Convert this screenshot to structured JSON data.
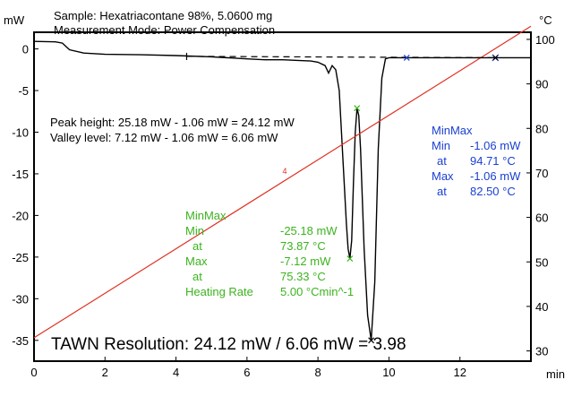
{
  "chart_data": {
    "type": "line",
    "title_lines": [
      "Sample: Hexatriacontane 98%, 5.0600 mg",
      "Measurement Mode: Power Compensation"
    ],
    "x_unit": "min",
    "y_left_unit": "mW",
    "y_right_unit": "°C",
    "xlim": [
      0,
      14
    ],
    "ylim_left": [
      -37.5,
      2
    ],
    "ylim_right": [
      27.7,
      101.6
    ],
    "x_ticks": [
      0,
      2,
      4,
      6,
      8,
      10,
      12
    ],
    "y_left_ticks": [
      0,
      -5,
      -10,
      -15,
      -20,
      -25,
      -30,
      -35
    ],
    "y_right_ticks": [
      100,
      90,
      80,
      70,
      60,
      50,
      40,
      30
    ],
    "series": [
      {
        "name": "Heat Flow",
        "axis": "left",
        "color": "#000000",
        "x": [
          0,
          0.6,
          0.8,
          1.0,
          1.4,
          2.0,
          3.0,
          4.0,
          5.0,
          6.0,
          6.5,
          7.0,
          7.5,
          7.8,
          8.0,
          8.2,
          8.3,
          8.4,
          8.5,
          8.6,
          8.7,
          8.8,
          8.85,
          8.9,
          8.95,
          9.0,
          9.05,
          9.1,
          9.15,
          9.2,
          9.3,
          9.4,
          9.5,
          9.6,
          9.7,
          9.8,
          9.9,
          10.0,
          10.5,
          11.0,
          12.0,
          13.0,
          14.0
        ],
        "y": [
          0.9,
          0.85,
          0.7,
          -0.1,
          -0.5,
          -0.65,
          -0.7,
          -0.8,
          -0.95,
          -1.2,
          -1.3,
          -1.3,
          -1.4,
          -1.45,
          -1.6,
          -2.0,
          -2.9,
          -2.0,
          -2.5,
          -5.0,
          -13.0,
          -21.0,
          -24.0,
          -25.18,
          -23.0,
          -16.0,
          -10.0,
          -7.12,
          -8.0,
          -12.0,
          -24.0,
          -32.0,
          -35.0,
          -28.0,
          -12.0,
          -3.5,
          -1.2,
          -1.06,
          -1.06,
          -1.06,
          -1.06,
          -1.06,
          -1.06
        ]
      },
      {
        "name": "Temperature",
        "axis": "right",
        "color": "#e03020",
        "x": [
          0,
          14
        ],
        "y": [
          32.95,
          102.95
        ]
      },
      {
        "name": "Baseline",
        "axis": "left",
        "color": "#000000",
        "dashed": true,
        "x": [
          4.3,
          13.0
        ],
        "y": [
          -0.9,
          -1.06
        ]
      }
    ],
    "curve_markers": {
      "min_ht": [
        8.9,
        -25.18
      ],
      "max_ht": [
        9.1,
        -7.12
      ],
      "min_green": [
        8.9,
        -25.18
      ],
      "max_green": [
        9.1,
        -7.12
      ],
      "min_black": [
        9.5,
        -35.0
      ],
      "limit_blue_start": [
        10.5,
        -1.06
      ],
      "limit_blue_end": [
        13.0,
        -1.06
      ],
      "limit_black_end": [
        13.0,
        -1.06
      ]
    },
    "red_marker_label": "4",
    "red_marker_pos": [
      7.0,
      -15.0
    ],
    "annotations": {
      "peak_height": "Peak height: 25.18 mW - 1.06 mW = 24.12 mW",
      "valley_level": "Valley level: 7.12 mW - 1.06 mW = 6.06 mW",
      "tawn": "TAWN Resolution: 24.12 mW / 6.06 mW = 3.98"
    },
    "minmax_blue": {
      "title": "MinMax",
      "rows": [
        {
          "label": "Min",
          "value": "-1.06 mW"
        },
        {
          "label": "at",
          "value": "94.71 °C"
        },
        {
          "label": "Max",
          "value": "-1.06 mW"
        },
        {
          "label": "at",
          "value": "82.50 °C"
        }
      ]
    },
    "minmax_green": {
      "title": "MinMax",
      "rows": [
        {
          "label": "Min",
          "value": "-25.18 mW"
        },
        {
          "label": "at",
          "value": "73.87 °C"
        },
        {
          "label": "Max",
          "value": "-7.12 mW"
        },
        {
          "label": "at",
          "value": "75.33 °C"
        },
        {
          "label": "Heating Rate",
          "value": "5.00 °Cmin^-1"
        }
      ]
    }
  }
}
